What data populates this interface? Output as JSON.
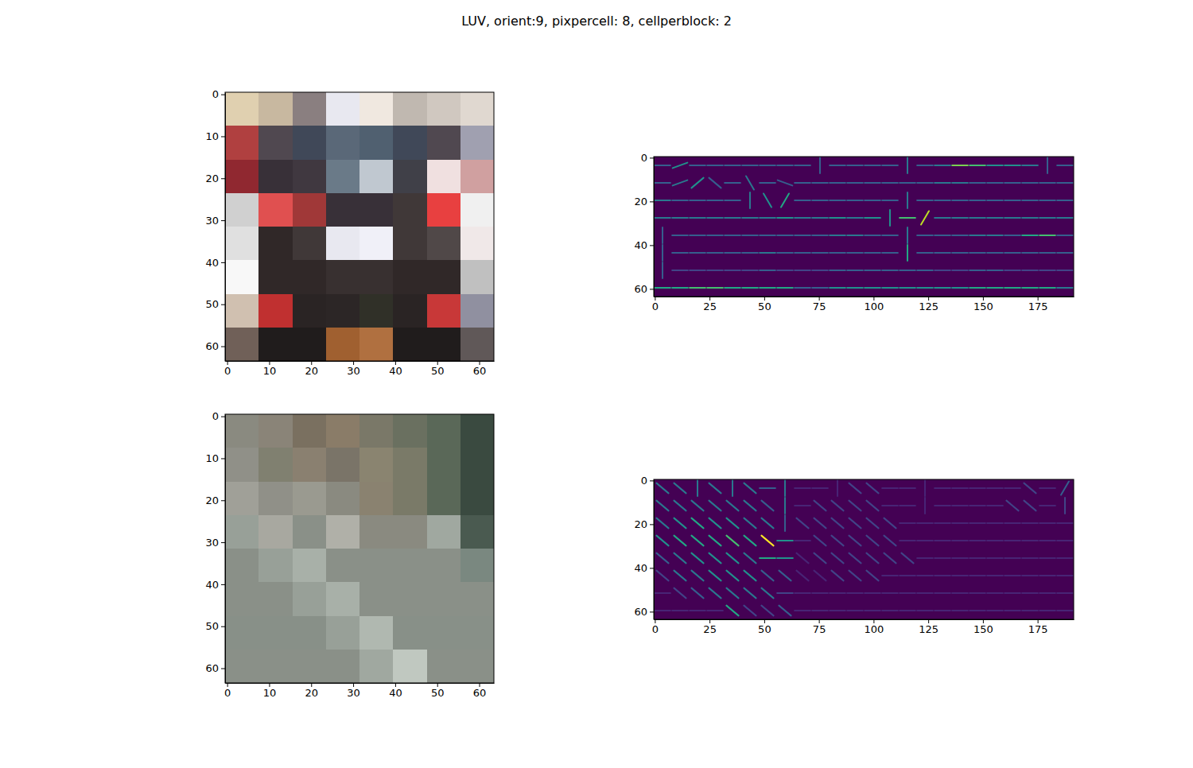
{
  "chart_data": {
    "type": "image_grid",
    "title": "LUV, orient:9, pixpercell: 8, cellperblock: 2",
    "panels": [
      {
        "type": "image",
        "xlim": [
          -0.5,
          63.5
        ],
        "ylim": [
          63.5,
          -0.5
        ],
        "xticks": [
          0,
          10,
          20,
          30,
          40,
          50,
          60
        ],
        "yticks": [
          0,
          10,
          20,
          30,
          40,
          50,
          60
        ],
        "pixels": [
          [
            "#e0d0b0",
            "#c8b8a0",
            "#8a7f80",
            "#e8e8f0",
            "#f0e8e0",
            "#c0b8b0",
            "#d0c8c0",
            "#e0d8d0"
          ],
          [
            "#b04040",
            "#504850",
            "#404858",
            "#5a6878",
            "#506070",
            "#404858",
            "#504850",
            "#a0a0b0"
          ],
          [
            "#902830",
            "#383038",
            "#403840",
            "#6a7a88",
            "#c0c8d0",
            "#404048",
            "#f0e0e0",
            "#d0a0a0"
          ],
          [
            "#d0d0d0",
            "#e05050",
            "#a03838",
            "#383038",
            "#383038",
            "#403838",
            "#e84040",
            "#f0f0f0"
          ],
          [
            "#e0e0e0",
            "#302828",
            "#403838",
            "#e8e8f0",
            "#f0f0f8",
            "#403838",
            "#504848",
            "#f0e8e8"
          ],
          [
            "#f8f8f8",
            "#302828",
            "#302828",
            "#383030",
            "#383030",
            "#302828",
            "#302828",
            "#c0c0c0"
          ],
          [
            "#d0c0b0",
            "#c03030",
            "#2a2424",
            "#2c2626",
            "#303028",
            "#2a2424",
            "#c83838",
            "#9090a0"
          ],
          [
            "#706058",
            "#201c1c",
            "#201c1c",
            "#a06030",
            "#b07040",
            "#201c1c",
            "#201c1c",
            "#605858"
          ]
        ]
      },
      {
        "type": "hog",
        "xlim": [
          -0.5,
          191.5
        ],
        "ylim": [
          63.5,
          -0.5
        ],
        "xticks": [
          0,
          25,
          50,
          75,
          100,
          125,
          150,
          175
        ],
        "yticks": [
          0,
          20,
          40,
          60
        ],
        "angles": [
          [
            0,
            20,
            0,
            0,
            0,
            0,
            0,
            0,
            0,
            90,
            0,
            0,
            0,
            0,
            90,
            0,
            0,
            0,
            0,
            0,
            0,
            0,
            90,
            0
          ],
          [
            0,
            20,
            40,
            140,
            0,
            120,
            0,
            160,
            0,
            0,
            0,
            0,
            0,
            0,
            0,
            0,
            0,
            0,
            0,
            0,
            0,
            0,
            0,
            0
          ],
          [
            0,
            0,
            0,
            0,
            0,
            90,
            120,
            60,
            0,
            0,
            0,
            0,
            0,
            0,
            90,
            0,
            0,
            0,
            0,
            0,
            0,
            0,
            0,
            0
          ],
          [
            0,
            0,
            0,
            0,
            0,
            0,
            0,
            0,
            0,
            0,
            0,
            0,
            0,
            90,
            0,
            60,
            0,
            0,
            0,
            0,
            0,
            0,
            0,
            0
          ],
          [
            90,
            0,
            0,
            0,
            0,
            0,
            0,
            0,
            0,
            0,
            0,
            0,
            0,
            0,
            90,
            0,
            0,
            0,
            0,
            0,
            0,
            0,
            0,
            0
          ],
          [
            90,
            0,
            0,
            0,
            0,
            0,
            0,
            0,
            0,
            0,
            0,
            0,
            0,
            0,
            90,
            0,
            0,
            0,
            0,
            0,
            0,
            0,
            0,
            0
          ],
          [
            90,
            0,
            0,
            0,
            0,
            0,
            0,
            0,
            0,
            0,
            0,
            0,
            0,
            0,
            0,
            0,
            0,
            0,
            0,
            0,
            0,
            0,
            0,
            0
          ],
          [
            0,
            0,
            0,
            0,
            0,
            0,
            0,
            0,
            0,
            0,
            0,
            0,
            0,
            0,
            0,
            0,
            0,
            0,
            0,
            0,
            0,
            0,
            0,
            0
          ]
        ],
        "magnitudes": [
          [
            0.3,
            0.5,
            0.3,
            0.3,
            0.3,
            0.3,
            0.3,
            0.3,
            0.3,
            0.3,
            0.3,
            0.3,
            0.3,
            0.3,
            0.4,
            0.3,
            0.4,
            0.8,
            0.7,
            0.5,
            0.5,
            0.4,
            0.3,
            0.3
          ],
          [
            0.3,
            0.4,
            0.5,
            0.3,
            0.3,
            0.4,
            0.3,
            0.3,
            0.3,
            0.3,
            0.3,
            0.3,
            0.3,
            0.3,
            0.3,
            0.3,
            0.4,
            0.4,
            0.3,
            0.3,
            0.3,
            0.3,
            0.3,
            0.3
          ],
          [
            0.4,
            0.3,
            0.3,
            0.3,
            0.3,
            0.4,
            0.5,
            0.6,
            0.3,
            0.3,
            0.3,
            0.3,
            0.3,
            0.3,
            0.4,
            0.3,
            0.3,
            0.3,
            0.3,
            0.3,
            0.3,
            0.3,
            0.3,
            0.3
          ],
          [
            0.4,
            0.4,
            0.4,
            0.4,
            0.4,
            0.4,
            0.4,
            0.5,
            0.4,
            0.4,
            0.5,
            0.4,
            0.5,
            0.5,
            0.7,
            0.9,
            0.4,
            0.4,
            0.4,
            0.4,
            0.4,
            0.4,
            0.4,
            0.4
          ],
          [
            0.3,
            0.3,
            0.3,
            0.3,
            0.3,
            0.3,
            0.3,
            0.3,
            0.3,
            0.3,
            0.4,
            0.4,
            0.3,
            0.3,
            0.4,
            0.3,
            0.3,
            0.3,
            0.4,
            0.4,
            0.3,
            0.6,
            0.7,
            0.3
          ],
          [
            0.3,
            0.3,
            0.3,
            0.3,
            0.3,
            0.3,
            0.4,
            0.3,
            0.3,
            0.3,
            0.3,
            0.3,
            0.3,
            0.3,
            0.6,
            0.3,
            0.3,
            0.3,
            0.3,
            0.3,
            0.3,
            0.3,
            0.3,
            0.3
          ],
          [
            0.3,
            0.2,
            0.2,
            0.2,
            0.2,
            0.2,
            0.3,
            0.2,
            0.2,
            0.2,
            0.3,
            0.3,
            0.3,
            0.3,
            0.3,
            0.3,
            0.2,
            0.2,
            0.3,
            0.3,
            0.2,
            0.2,
            0.2,
            0.2
          ],
          [
            0.6,
            0.6,
            0.7,
            0.7,
            0.6,
            0.6,
            0.6,
            0.6,
            0.3,
            0.3,
            0.5,
            0.5,
            0.5,
            0.5,
            0.5,
            0.5,
            0.5,
            0.5,
            0.6,
            0.6,
            0.6,
            0.6,
            0.6,
            0.4
          ]
        ]
      },
      {
        "type": "image",
        "xlim": [
          -0.5,
          63.5
        ],
        "ylim": [
          63.5,
          -0.5
        ],
        "xticks": [
          0,
          10,
          20,
          30,
          40,
          50,
          60
        ],
        "yticks": [
          0,
          10,
          20,
          30,
          40,
          50,
          60
        ],
        "pixels": [
          [
            "#8a8a80",
            "#8a8478",
            "#7a7060",
            "#8a7c68",
            "#7a7868",
            "#6a7060",
            "#5a6858",
            "#3a4a40"
          ],
          [
            "#909088",
            "#808070",
            "#8a8070",
            "#7a7468",
            "#8a8470",
            "#7a7a68",
            "#5a6858",
            "#3a4a40"
          ],
          [
            "#a0a098",
            "#909088",
            "#9a9a90",
            "#8a8a80",
            "#8a8270",
            "#7a7a68",
            "#5a6858",
            "#3a4a40"
          ],
          [
            "#98a098",
            "#a8a8a0",
            "#8a9088",
            "#b0b0a8",
            "#8a8a80",
            "#8a8a80",
            "#a0a8a0",
            "#4a5a50"
          ],
          [
            "#8a9088",
            "#98a098",
            "#a8b0a8",
            "#8a9088",
            "#8a9088",
            "#8a9088",
            "#8a9088",
            "#7a8880"
          ],
          [
            "#8a9088",
            "#8a9088",
            "#98a098",
            "#a8b0a8",
            "#8a9088",
            "#8a9088",
            "#8a9088",
            "#8a9088"
          ],
          [
            "#889088",
            "#889088",
            "#889088",
            "#98a098",
            "#b0b8b0",
            "#889088",
            "#889088",
            "#889088"
          ],
          [
            "#8a9088",
            "#8a9088",
            "#8a9088",
            "#8a9088",
            "#a0a8a0",
            "#c0c8c0",
            "#8a9088",
            "#8a9088"
          ]
        ]
      },
      {
        "type": "hog",
        "xlim": [
          -0.5,
          191.5
        ],
        "ylim": [
          63.5,
          -0.5
        ],
        "xticks": [
          0,
          25,
          50,
          75,
          100,
          125,
          150,
          175
        ],
        "yticks": [
          0,
          20,
          40,
          60
        ],
        "angles": [
          [
            140,
            140,
            90,
            140,
            90,
            140,
            0,
            90,
            0,
            0,
            90,
            140,
            140,
            0,
            0,
            90,
            0,
            0,
            0,
            0,
            0,
            140,
            0,
            60
          ],
          [
            140,
            140,
            140,
            140,
            140,
            140,
            140,
            90,
            0,
            140,
            140,
            140,
            140,
            0,
            0,
            90,
            0,
            0,
            0,
            0,
            140,
            140,
            0,
            90
          ],
          [
            140,
            140,
            140,
            140,
            140,
            140,
            140,
            90,
            140,
            140,
            140,
            140,
            140,
            140,
            0,
            0,
            0,
            0,
            0,
            0,
            0,
            0,
            0,
            0
          ],
          [
            140,
            140,
            140,
            140,
            140,
            140,
            140,
            0,
            0,
            140,
            140,
            140,
            140,
            140,
            0,
            0,
            0,
            0,
            0,
            0,
            0,
            0,
            0,
            0
          ],
          [
            140,
            140,
            140,
            140,
            140,
            140,
            0,
            0,
            140,
            140,
            140,
            140,
            140,
            140,
            140,
            0,
            0,
            0,
            0,
            0,
            0,
            0,
            0,
            0
          ],
          [
            140,
            140,
            140,
            140,
            140,
            140,
            140,
            140,
            140,
            140,
            140,
            140,
            140,
            0,
            0,
            0,
            0,
            0,
            0,
            0,
            0,
            0,
            0,
            0
          ],
          [
            0,
            140,
            140,
            140,
            140,
            140,
            140,
            0,
            0,
            0,
            0,
            0,
            0,
            0,
            0,
            0,
            0,
            0,
            0,
            0,
            0,
            0,
            0,
            0
          ],
          [
            0,
            0,
            0,
            0,
            140,
            140,
            140,
            140,
            0,
            0,
            0,
            0,
            0,
            0,
            0,
            0,
            0,
            0,
            0,
            0,
            0,
            0,
            0,
            0
          ]
        ],
        "magnitudes": [
          [
            0.4,
            0.4,
            0.4,
            0.4,
            0.4,
            0.4,
            0.3,
            0.4,
            0.1,
            0.1,
            0.1,
            0.2,
            0.2,
            0.1,
            0.1,
            0.1,
            0.1,
            0.1,
            0.1,
            0.1,
            0.1,
            0.2,
            0.1,
            0.3
          ],
          [
            0.4,
            0.4,
            0.4,
            0.4,
            0.4,
            0.4,
            0.3,
            0.4,
            0.1,
            0.2,
            0.2,
            0.2,
            0.2,
            0.1,
            0.1,
            0.1,
            0.1,
            0.1,
            0.1,
            0.1,
            0.2,
            0.2,
            0.1,
            0.2
          ],
          [
            0.4,
            0.5,
            0.6,
            0.5,
            0.5,
            0.4,
            0.4,
            0.3,
            0.2,
            0.2,
            0.2,
            0.2,
            0.2,
            0.2,
            0.1,
            0.1,
            0.1,
            0.1,
            0.1,
            0.1,
            0.1,
            0.1,
            0.1,
            0.1
          ],
          [
            0.5,
            0.6,
            0.6,
            0.6,
            0.7,
            0.6,
            1.0,
            0.5,
            0.1,
            0.2,
            0.2,
            0.2,
            0.2,
            0.2,
            0.1,
            0.1,
            0.1,
            0.1,
            0.1,
            0.1,
            0.1,
            0.1,
            0.1,
            0.1
          ],
          [
            0.3,
            0.4,
            0.5,
            0.5,
            0.5,
            0.4,
            0.6,
            0.5,
            0.1,
            0.2,
            0.2,
            0.2,
            0.2,
            0.2,
            0.2,
            0.1,
            0.1,
            0.1,
            0.1,
            0.1,
            0.1,
            0.1,
            0.1,
            0.1
          ],
          [
            0.2,
            0.4,
            0.4,
            0.5,
            0.5,
            0.5,
            0.3,
            0.3,
            0.1,
            0.1,
            0.2,
            0.2,
            0.2,
            0.1,
            0.1,
            0.1,
            0.1,
            0.1,
            0.1,
            0.1,
            0.1,
            0.1,
            0.1,
            0.1
          ],
          [
            0.1,
            0.2,
            0.3,
            0.4,
            0.4,
            0.4,
            0.4,
            0.2,
            0.1,
            0.1,
            0.1,
            0.1,
            0.1,
            0.1,
            0.1,
            0.1,
            0.1,
            0.1,
            0.1,
            0.1,
            0.1,
            0.1,
            0.1,
            0.1
          ],
          [
            0.1,
            0.1,
            0.1,
            0.1,
            0.6,
            0.2,
            0.2,
            0.3,
            0.1,
            0.1,
            0.1,
            0.1,
            0.1,
            0.1,
            0.1,
            0.1,
            0.1,
            0.1,
            0.1,
            0.1,
            0.1,
            0.1,
            0.1,
            0.1
          ]
        ]
      }
    ]
  }
}
